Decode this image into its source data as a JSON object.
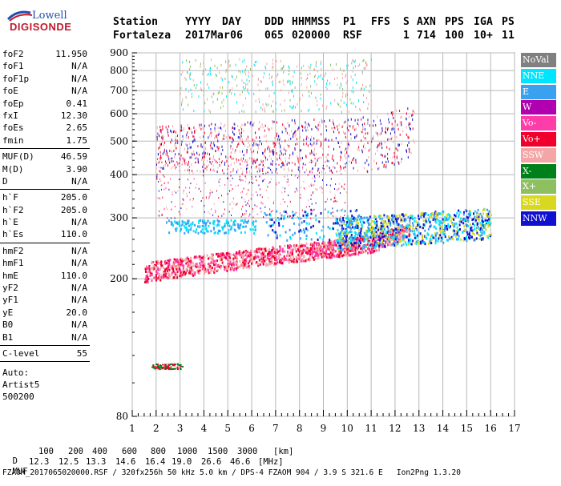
{
  "logo": {
    "line1": "Lowell",
    "line2": "DIGISONDE"
  },
  "header": {
    "row1": [
      "Station",
      "YYYY",
      "DAY",
      "DDD",
      "HHMMSS",
      "P1",
      "FFS",
      "S",
      "AXN",
      "PPS",
      "IGA",
      "PS"
    ],
    "row2": [
      "Fortaleza",
      "2017",
      "Mar06",
      "065",
      "020000",
      "RSF",
      "",
      "1",
      "714",
      "100",
      "10+",
      "11"
    ]
  },
  "params_group1": [
    {
      "k": "foF2",
      "v": "11.950"
    },
    {
      "k": "foF1",
      "v": "N/A"
    },
    {
      "k": "foF1p",
      "v": "N/A"
    },
    {
      "k": "foE",
      "v": "N/A"
    },
    {
      "k": "foEp",
      "v": "0.41"
    },
    {
      "k": "fxI",
      "v": "12.30"
    },
    {
      "k": "foEs",
      "v": "2.65"
    },
    {
      "k": "fmin",
      "v": "1.75"
    }
  ],
  "params_group2": [
    {
      "k": "MUF(D)",
      "v": "46.59"
    },
    {
      "k": "M(D)",
      "v": "3.90"
    },
    {
      "k": "D",
      "v": "N/A"
    }
  ],
  "params_group3": [
    {
      "k": "h`F",
      "v": "205.0"
    },
    {
      "k": "h`F2",
      "v": "205.0"
    },
    {
      "k": "h`E",
      "v": "N/A"
    },
    {
      "k": "h`Es",
      "v": "110.0"
    }
  ],
  "params_group4": [
    {
      "k": "hmF2",
      "v": "N/A"
    },
    {
      "k": "hmF1",
      "v": "N/A"
    },
    {
      "k": "hmE",
      "v": "110.0"
    },
    {
      "k": "yF2",
      "v": "N/A"
    },
    {
      "k": "yF1",
      "v": "N/A"
    },
    {
      "k": "yE",
      "v": "20.0"
    },
    {
      "k": "B0",
      "v": "N/A"
    },
    {
      "k": "B1",
      "v": "N/A"
    }
  ],
  "params_group5": [
    {
      "k": "C-level",
      "v": "55"
    }
  ],
  "auto": {
    "line1": "Auto:",
    "line2": "Artist5",
    "line3": "500200"
  },
  "legend": [
    {
      "label": "NoVal",
      "color": "#808080"
    },
    {
      "label": "NNE",
      "color": "#00e5ff"
    },
    {
      "label": "E",
      "color": "#3aa0f0"
    },
    {
      "label": "W",
      "color": "#b000b0"
    },
    {
      "label": "Vo-",
      "color": "#ff3da8"
    },
    {
      "label": "Vo+",
      "color": "#f0002a"
    },
    {
      "label": "SSW",
      "color": "#f4a6a6"
    },
    {
      "label": "X-",
      "color": "#00801a"
    },
    {
      "label": "X+",
      "color": "#8fc060"
    },
    {
      "label": "SSE",
      "color": "#d8d820"
    },
    {
      "label": "NNW",
      "color": "#1010d0"
    }
  ],
  "chart_data": {
    "type": "scatter",
    "xlabel": "",
    "ylabel": "",
    "xlim": [
      1,
      17
    ],
    "ylim": [
      80,
      900
    ],
    "y_log_scale": true,
    "x_ticks": [
      "1",
      "2",
      "3",
      "4",
      "5",
      "6",
      "7",
      "8",
      "9",
      "10",
      "11",
      "12",
      "13",
      "14",
      "15",
      "16",
      "17"
    ],
    "y_ticks": [
      {
        "value": 80,
        "label": "80"
      },
      {
        "value": 200,
        "label": "200"
      },
      {
        "value": 300,
        "label": "300"
      },
      {
        "value": 400,
        "label": "400"
      },
      {
        "value": 500,
        "label": "500"
      },
      {
        "value": 600,
        "label": "600"
      },
      {
        "value": 700,
        "label": "700"
      },
      {
        "value": 800,
        "label": "800"
      },
      {
        "value": 900,
        "label": "900"
      }
    ],
    "grid": true,
    "traces": [
      {
        "name": "F-layer O-trace",
        "x_range": [
          1.5,
          12.6
        ],
        "y_range": [
          205,
          280
        ],
        "colors": [
          "Vo+",
          "Vo-",
          "SSW"
        ]
      },
      {
        "name": "F-layer spread",
        "x_range": [
          6.5,
          16.5
        ],
        "y_range": [
          260,
          360
        ],
        "colors": [
          "NNW",
          "NNE",
          "E",
          "SSE"
        ]
      },
      {
        "name": "Es trace",
        "x_range": [
          1.8,
          3.0
        ],
        "y_range": [
          110,
          115
        ],
        "colors": [
          "Vo+",
          "X-"
        ]
      },
      {
        "name": "Multiple-hop 400-600",
        "x_range": [
          2.0,
          12.8
        ],
        "y_range": [
          400,
          600
        ],
        "colors": [
          "Vo+",
          "NNW",
          "SSW"
        ]
      },
      {
        "name": "Multiple-hop 600-900",
        "x_range": [
          3.0,
          11.0
        ],
        "y_range": [
          600,
          900
        ],
        "colors": [
          "SSW",
          "X+",
          "NNE"
        ]
      }
    ]
  },
  "muf_table": {
    "row_d_label": "D",
    "row_d_values": [
      "100",
      "200",
      "400",
      "600",
      "800",
      "1000",
      "1500",
      "3000"
    ],
    "row_d_unit": "[km]",
    "row_muf_label": "MUF",
    "row_muf_values": [
      "12.3",
      "12.5",
      "13.3",
      "14.6",
      "16.4",
      "19.0",
      "26.6",
      "46.6"
    ],
    "row_muf_unit": "[MHz]"
  },
  "footer": "FZAOM_2017065020000.RSF / 320fx256h 50 kHz 5.0 km / DPS-4 FZAOM 904 / 3.9 S 321.6 E   Ion2Png 1.3.20"
}
